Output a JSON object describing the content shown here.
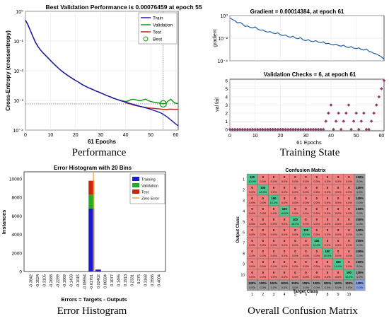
{
  "chart_data": [
    {
      "type": "line",
      "caption": "Performance",
      "title": "Best Validation Performance is 0.00076459 at epoch 55",
      "xlabel": "61 Epochs",
      "ylabel": "Cross-Entropy (crossentropy)",
      "xlim": [
        0,
        61
      ],
      "ylim": [
        0.0001,
        1
      ],
      "yscale": "log",
      "xticks": [
        "0",
        "10",
        "20",
        "30",
        "40",
        "50",
        "60"
      ],
      "yticks": [
        "10⁰",
        "10⁻¹",
        "10⁻²",
        "10⁻³",
        "10⁻⁴"
      ],
      "legend": {
        "position": "top-right",
        "entries": [
          "Train",
          "Validation",
          "Test",
          "Best"
        ]
      },
      "colors": {
        "Train": "#1a1ab0",
        "Validation": "#119911",
        "Test": "#bb2211",
        "Best": "#119911",
        "Goal": "#555555"
      },
      "x": [
        0,
        1,
        2,
        3,
        4,
        5,
        6,
        7,
        8,
        9,
        10,
        11,
        12,
        13,
        14,
        15,
        16,
        17,
        18,
        19,
        20,
        21,
        22,
        23,
        24,
        25,
        26,
        27,
        28,
        29,
        30,
        31,
        32,
        33,
        34,
        35,
        36,
        37,
        38,
        39,
        40,
        41,
        42,
        43,
        44,
        45,
        46,
        47,
        48,
        49,
        50,
        51,
        52,
        53,
        54,
        55,
        56,
        57,
        58,
        59,
        60,
        61
      ],
      "series": [
        {
          "name": "Train",
          "values": [
            0.5,
            0.35,
            0.22,
            0.14,
            0.09,
            0.065,
            0.05,
            0.04,
            0.033,
            0.027,
            0.022,
            0.018,
            0.015,
            0.0125,
            0.0105,
            0.009,
            0.0078,
            0.0068,
            0.006,
            0.0053,
            0.0047,
            0.0042,
            0.0037,
            0.0033,
            0.003,
            0.0027,
            0.0025,
            0.0023,
            0.0021,
            0.00195,
            0.0018,
            0.00165,
            0.00152,
            0.0014,
            0.0013,
            0.0012,
            0.00112,
            0.00105,
            0.00098,
            0.00092,
            0.00087,
            0.00082,
            0.00078,
            0.00074,
            0.0007,
            0.00066,
            0.00062,
            0.00059,
            0.00056,
            0.00053,
            0.0005,
            0.00047,
            0.00044,
            0.00041,
            0.00038,
            0.00034,
            0.0003,
            0.00026,
            0.00022,
            0.00019,
            0.00016,
            0.00014
          ]
        },
        {
          "name": "Validation",
          "values": [
            0.5,
            0.35,
            0.22,
            0.14,
            0.09,
            0.065,
            0.05,
            0.04,
            0.033,
            0.027,
            0.022,
            0.018,
            0.015,
            0.0125,
            0.0105,
            0.009,
            0.0078,
            0.0068,
            0.006,
            0.0053,
            0.0047,
            0.0042,
            0.0037,
            0.0033,
            0.003,
            0.0027,
            0.0025,
            0.0023,
            0.0021,
            0.00195,
            0.0018,
            0.00165,
            0.00152,
            0.0014,
            0.0013,
            0.0012,
            0.00112,
            0.00105,
            0.00098,
            0.00095,
            0.00092,
            0.00095,
            0.00105,
            0.0011,
            0.00105,
            0.001,
            0.00098,
            0.00105,
            0.0011,
            0.00098,
            0.00092,
            0.00088,
            0.00085,
            0.00082,
            0.0008,
            0.00076459,
            0.0008,
            0.00095,
            0.0011,
            0.0009,
            0.0008,
            0.00078
          ]
        },
        {
          "name": "Test",
          "values": [
            0.5,
            0.35,
            0.22,
            0.14,
            0.09,
            0.065,
            0.05,
            0.04,
            0.033,
            0.027,
            0.022,
            0.018,
            0.015,
            0.0125,
            0.0105,
            0.009,
            0.0078,
            0.0068,
            0.006,
            0.0053,
            0.0047,
            0.0042,
            0.0037,
            0.0033,
            0.003,
            0.0027,
            0.0025,
            0.0023,
            0.0021,
            0.00195,
            0.0018,
            0.00165,
            0.00152,
            0.0014,
            0.0013,
            0.0012,
            0.00112,
            0.00105,
            0.001,
            0.00095,
            0.00085,
            0.00078,
            0.00075,
            0.0007,
            0.00067,
            0.00064,
            0.00062,
            0.0006,
            0.00058,
            0.00056,
            0.00055,
            0.00054,
            0.00053,
            0.00052,
            0.00051,
            0.0005,
            0.00049,
            0.0005,
            0.00051,
            0.0005,
            0.0005,
            0.0005
          ]
        }
      ],
      "best": {
        "epoch": 55,
        "value": 0.00076459
      }
    },
    {
      "type": "line",
      "caption": "Training State",
      "title": "Gradient = 0.00014384, at epoch 61",
      "ylabel": "gradient",
      "xlim": [
        0,
        61
      ],
      "ylim": [
        0.0001,
        1
      ],
      "yscale": "log",
      "yticks": [
        "10⁰",
        "10⁻²",
        "10⁻⁴"
      ],
      "color": "#1f5fa8",
      "x": [
        0,
        1,
        2,
        3,
        4,
        5,
        6,
        7,
        8,
        9,
        10,
        11,
        12,
        13,
        14,
        15,
        16,
        17,
        18,
        19,
        20,
        21,
        22,
        23,
        24,
        25,
        26,
        27,
        28,
        29,
        30,
        31,
        32,
        33,
        34,
        35,
        36,
        37,
        38,
        39,
        40,
        41,
        42,
        43,
        44,
        45,
        46,
        47,
        48,
        49,
        50,
        51,
        52,
        53,
        54,
        55,
        56,
        57,
        58,
        59,
        60,
        61
      ],
      "values": [
        0.6,
        0.45,
        0.35,
        0.22,
        0.25,
        0.18,
        0.11,
        0.12,
        0.09,
        0.08,
        0.1,
        0.065,
        0.05,
        0.055,
        0.04,
        0.035,
        0.038,
        0.028,
        0.025,
        0.03,
        0.02,
        0.017,
        0.019,
        0.014,
        0.012,
        0.015,
        0.01,
        0.009,
        0.011,
        0.007,
        0.006,
        0.0075,
        0.0055,
        0.005,
        0.006,
        0.0045,
        0.004,
        0.0048,
        0.0032,
        0.0035,
        0.0028,
        0.0025,
        0.003,
        0.0022,
        0.002,
        0.0024,
        0.0017,
        0.0015,
        0.0018,
        0.0013,
        0.0012,
        0.0014,
        0.001,
        0.0009,
        0.0011,
        0.0007,
        0.0006,
        0.00045,
        0.0004,
        0.0003,
        0.00022,
        0.00014384
      ]
    },
    {
      "type": "scatter",
      "title": "Validation Checks = 6, at epoch 61",
      "xlabel": "61 Epochs",
      "ylabel": "val fail",
      "xlim": [
        0,
        61
      ],
      "ylim": [
        0,
        6
      ],
      "xticks": [
        "0",
        "10",
        "20",
        "30",
        "40",
        "50",
        "60"
      ],
      "yticks": [
        "0",
        "1",
        "2",
        "3",
        "4",
        "5",
        "6"
      ],
      "color": "#8b3a6b",
      "x": [
        0,
        1,
        2,
        3,
        4,
        5,
        6,
        7,
        8,
        9,
        10,
        11,
        12,
        13,
        14,
        15,
        16,
        17,
        18,
        19,
        20,
        21,
        22,
        23,
        24,
        25,
        26,
        27,
        28,
        29,
        30,
        31,
        32,
        33,
        34,
        35,
        36,
        37,
        38,
        39,
        40,
        41,
        42,
        43,
        44,
        45,
        46,
        47,
        48,
        49,
        50,
        51,
        52,
        53,
        54,
        55,
        56,
        57,
        58,
        59,
        60,
        61
      ],
      "values": [
        0,
        0,
        0,
        0,
        0,
        0,
        0,
        0,
        0,
        0,
        0,
        0,
        0,
        0,
        0,
        0,
        0,
        0,
        0,
        0,
        0,
        0,
        0,
        0,
        0,
        0,
        0,
        0,
        0,
        0,
        0,
        0,
        0,
        0,
        0,
        0,
        0,
        0,
        1,
        2,
        3,
        0,
        1,
        2,
        0,
        1,
        2,
        3,
        0,
        1,
        2,
        0,
        1,
        2,
        0,
        0,
        1,
        2,
        3,
        4,
        5,
        6
      ]
    },
    {
      "type": "bar",
      "caption": "Error Histogram",
      "title": "Error Histogram with 20 Bins",
      "xlabel": "Errors = Targets - Outputs",
      "ylabel": "Instances",
      "ylim": [
        0,
        10000
      ],
      "yticks": [
        "0",
        "2000",
        "4000",
        "6000",
        "8000",
        "10000"
      ],
      "categories": [
        "-0.3842",
        "-0.3524",
        "-0.3105",
        "-0.2688",
        "-0.2289",
        "-0.1869",
        "-0.1433",
        "-0.1015",
        "-0.05954",
        "-0.01791",
        "0.02402",
        "0.06584",
        "0.1077",
        "0.1495",
        "0.1913",
        "0.2331",
        "0.275",
        "0.3168",
        "0.3586",
        "0.4004"
      ],
      "legend": {
        "position": "top-right",
        "entries": [
          "Training",
          "Validation",
          "Test",
          "Zero Error"
        ]
      },
      "colors": {
        "Training": "#1a1ad0",
        "Validation": "#22aa22",
        "Test": "#cc2211",
        "Zero Error": "#e8a33c"
      },
      "series": [
        {
          "name": "Training",
          "values": [
            0,
            0,
            0,
            0,
            0,
            0,
            0,
            0,
            0,
            6800,
            150,
            0,
            0,
            0,
            0,
            0,
            0,
            0,
            0,
            0
          ]
        },
        {
          "name": "Validation",
          "values": [
            0,
            0,
            0,
            0,
            0,
            0,
            0,
            0,
            0,
            1500,
            40,
            0,
            0,
            0,
            0,
            0,
            0,
            0,
            0,
            0
          ]
        },
        {
          "name": "Test",
          "values": [
            0,
            0,
            0,
            0,
            0,
            0,
            0,
            0,
            0,
            1500,
            40,
            0,
            0,
            0,
            0,
            0,
            0,
            0,
            0,
            0
          ]
        }
      ],
      "zero_error_bin": 9
    },
    {
      "type": "heatmap",
      "caption": "Overall Confusion Matrix",
      "title": "Confusion Matrix",
      "xlabel": "Target Class",
      "ylabel": "Output Class",
      "classes": [
        "1",
        "2",
        "3",
        "4",
        "5",
        "6",
        "7",
        "8",
        "9",
        "10"
      ],
      "colors": {
        "diagonal": "#4cc58e",
        "off_diagonal": "#f08080",
        "summary": "#9a9a9a",
        "total": "#8aa0e0"
      },
      "diagonal_values": [
        "100",
        "100",
        "100",
        "100",
        "100",
        "100",
        "100",
        "100",
        "100",
        "100"
      ],
      "off_diagonal_value": "0",
      "diagonal_pct": "10.0%",
      "off_diagonal_pct": "0.0%",
      "summary_top": "100%",
      "summary_bottom": "0.0%",
      "total_top": "100%",
      "total_bottom": "0.0%"
    }
  ]
}
